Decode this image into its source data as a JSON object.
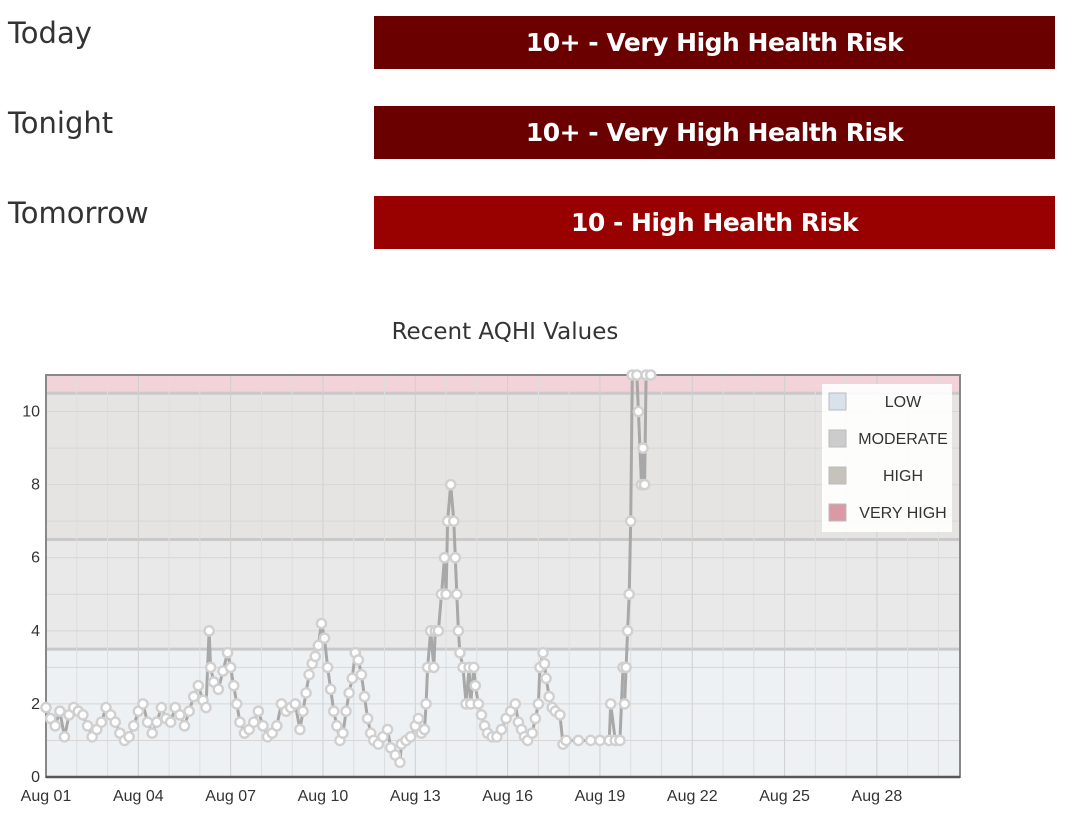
{
  "forecast": [
    {
      "label": "Today",
      "risk": "10+ - Very High Health Risk",
      "color": "#6b0000"
    },
    {
      "label": "Tonight",
      "risk": "10+ - Very High Health Risk",
      "color": "#6b0000"
    },
    {
      "label": "Tomorrow",
      "risk": "10 - High Health Risk",
      "color": "#990000"
    }
  ],
  "chart_data": {
    "type": "line",
    "title": "Recent AQHI Values",
    "xlabel": "",
    "ylabel": "",
    "x_range_days": [
      1,
      30.7
    ],
    "ylim": [
      0,
      11
    ],
    "y_ticks": [
      0,
      2,
      4,
      6,
      8,
      10
    ],
    "x_ticks": [
      {
        "day": 1,
        "label": "Aug 01"
      },
      {
        "day": 4,
        "label": "Aug 04"
      },
      {
        "day": 7,
        "label": "Aug 07"
      },
      {
        "day": 10,
        "label": "Aug 10"
      },
      {
        "day": 13,
        "label": "Aug 13"
      },
      {
        "day": 16,
        "label": "Aug 16"
      },
      {
        "day": 19,
        "label": "Aug 19"
      },
      {
        "day": 22,
        "label": "Aug 22"
      },
      {
        "day": 25,
        "label": "Aug 25"
      },
      {
        "day": 28,
        "label": "Aug 28"
      }
    ],
    "grid": true,
    "legend_position": "top-right",
    "bands": [
      {
        "name": "LOW",
        "from": 0,
        "to": 3.5,
        "color": "#edf1f4",
        "swatch": "#d8e2ea"
      },
      {
        "name": "MODERATE",
        "from": 3.5,
        "to": 6.5,
        "color": "#e9e9e9",
        "swatch": "#cccccc"
      },
      {
        "name": "HIGH",
        "from": 6.5,
        "to": 10.5,
        "color": "#e6e4e2",
        "swatch": "#c6c3bd"
      },
      {
        "name": "VERY HIGH",
        "from": 10.5,
        "to": 11,
        "color": "#f1d3d9",
        "swatch": "#d99aa6"
      }
    ],
    "series": [
      {
        "line_color": "#a8a8a8",
        "marker_color": "#d0d0d0",
        "points": [
          [
            1.0,
            1.9
          ],
          [
            1.15,
            1.6
          ],
          [
            1.3,
            1.4
          ],
          [
            1.45,
            1.8
          ],
          [
            1.6,
            1.1
          ],
          [
            1.75,
            1.7
          ],
          [
            1.9,
            1.9
          ],
          [
            2.05,
            1.8
          ],
          [
            2.2,
            1.7
          ],
          [
            2.35,
            1.4
          ],
          [
            2.5,
            1.1
          ],
          [
            2.65,
            1.3
          ],
          [
            2.8,
            1.5
          ],
          [
            2.95,
            1.9
          ],
          [
            3.1,
            1.7
          ],
          [
            3.25,
            1.5
          ],
          [
            3.4,
            1.2
          ],
          [
            3.55,
            1.0
          ],
          [
            3.7,
            1.1
          ],
          [
            3.85,
            1.4
          ],
          [
            4.0,
            1.8
          ],
          [
            4.15,
            2.0
          ],
          [
            4.3,
            1.5
          ],
          [
            4.45,
            1.2
          ],
          [
            4.6,
            1.5
          ],
          [
            4.75,
            1.9
          ],
          [
            4.9,
            1.6
          ],
          [
            5.05,
            1.5
          ],
          [
            5.2,
            1.9
          ],
          [
            5.35,
            1.7
          ],
          [
            5.5,
            1.4
          ],
          [
            5.65,
            1.8
          ],
          [
            5.8,
            2.2
          ],
          [
            5.95,
            2.5
          ],
          [
            6.1,
            2.1
          ],
          [
            6.2,
            1.9
          ],
          [
            6.3,
            4.0
          ],
          [
            6.35,
            3.0
          ],
          [
            6.45,
            2.6
          ],
          [
            6.6,
            2.4
          ],
          [
            6.75,
            2.9
          ],
          [
            6.9,
            3.4
          ],
          [
            7.0,
            3.0
          ],
          [
            7.1,
            2.5
          ],
          [
            7.2,
            2.0
          ],
          [
            7.3,
            1.5
          ],
          [
            7.45,
            1.2
          ],
          [
            7.6,
            1.3
          ],
          [
            7.75,
            1.5
          ],
          [
            7.9,
            1.8
          ],
          [
            8.05,
            1.4
          ],
          [
            8.2,
            1.1
          ],
          [
            8.35,
            1.2
          ],
          [
            8.5,
            1.4
          ],
          [
            8.65,
            2.0
          ],
          [
            8.8,
            1.8
          ],
          [
            8.95,
            1.9
          ],
          [
            9.1,
            2.0
          ],
          [
            9.25,
            1.3
          ],
          [
            9.35,
            1.8
          ],
          [
            9.45,
            2.3
          ],
          [
            9.55,
            2.8
          ],
          [
            9.65,
            3.1
          ],
          [
            9.75,
            3.3
          ],
          [
            9.85,
            3.6
          ],
          [
            9.95,
            4.2
          ],
          [
            10.05,
            3.8
          ],
          [
            10.15,
            3.0
          ],
          [
            10.25,
            2.4
          ],
          [
            10.35,
            1.8
          ],
          [
            10.45,
            1.4
          ],
          [
            10.55,
            1.0
          ],
          [
            10.65,
            1.2
          ],
          [
            10.75,
            1.8
          ],
          [
            10.85,
            2.3
          ],
          [
            10.95,
            2.7
          ],
          [
            11.05,
            3.4
          ],
          [
            11.15,
            3.2
          ],
          [
            11.25,
            2.8
          ],
          [
            11.35,
            2.2
          ],
          [
            11.45,
            1.6
          ],
          [
            11.55,
            1.2
          ],
          [
            11.65,
            1.0
          ],
          [
            11.8,
            0.9
          ],
          [
            11.95,
            1.1
          ],
          [
            12.1,
            1.3
          ],
          [
            12.2,
            0.8
          ],
          [
            12.35,
            0.6
          ],
          [
            12.5,
            0.4
          ],
          [
            12.55,
            0.9
          ],
          [
            12.7,
            1.0
          ],
          [
            12.85,
            1.1
          ],
          [
            13.0,
            1.4
          ],
          [
            13.1,
            1.6
          ],
          [
            13.2,
            1.2
          ],
          [
            13.3,
            1.3
          ],
          [
            13.35,
            2.0
          ],
          [
            13.4,
            3.0
          ],
          [
            13.5,
            4.0
          ],
          [
            13.6,
            3.0
          ],
          [
            13.65,
            4.0
          ],
          [
            13.75,
            4.0
          ],
          [
            13.85,
            5.0
          ],
          [
            13.95,
            6.0
          ],
          [
            14.0,
            5.0
          ],
          [
            14.05,
            7.0
          ],
          [
            14.15,
            8.0
          ],
          [
            14.25,
            7.0
          ],
          [
            14.3,
            6.0
          ],
          [
            14.35,
            5.0
          ],
          [
            14.4,
            4.0
          ],
          [
            14.45,
            3.4
          ],
          [
            14.55,
            3.0
          ],
          [
            14.65,
            2.0
          ],
          [
            14.75,
            3.0
          ],
          [
            14.8,
            2.0
          ],
          [
            14.9,
            3.0
          ],
          [
            14.95,
            2.5
          ],
          [
            15.05,
            2.0
          ],
          [
            15.15,
            1.7
          ],
          [
            15.25,
            1.4
          ],
          [
            15.35,
            1.2
          ],
          [
            15.5,
            1.1
          ],
          [
            15.65,
            1.1
          ],
          [
            15.8,
            1.3
          ],
          [
            15.95,
            1.6
          ],
          [
            16.1,
            1.8
          ],
          [
            16.25,
            2.0
          ],
          [
            16.35,
            1.5
          ],
          [
            16.45,
            1.3
          ],
          [
            16.55,
            1.1
          ],
          [
            16.65,
            1.0
          ],
          [
            16.8,
            1.2
          ],
          [
            16.9,
            1.6
          ],
          [
            17.0,
            2.0
          ],
          [
            17.05,
            3.0
          ],
          [
            17.15,
            3.4
          ],
          [
            17.2,
            3.1
          ],
          [
            17.25,
            2.7
          ],
          [
            17.35,
            2.2
          ],
          [
            17.45,
            1.9
          ],
          [
            17.55,
            1.8
          ],
          [
            17.7,
            1.7
          ],
          [
            17.8,
            0.9
          ],
          [
            17.9,
            1.0
          ],
          [
            18.3,
            1.0
          ],
          [
            18.7,
            1.0
          ],
          [
            19.0,
            1.0
          ],
          [
            19.3,
            1.0
          ],
          [
            19.35,
            2.0
          ],
          [
            19.5,
            1.0
          ],
          [
            19.65,
            1.0
          ],
          [
            19.75,
            3.0
          ],
          [
            19.85,
            3.0
          ],
          [
            19.8,
            2.0
          ],
          [
            19.9,
            4.0
          ],
          [
            19.95,
            5.0
          ],
          [
            20.0,
            7.0
          ],
          [
            20.05,
            11.0
          ],
          [
            20.2,
            11.0
          ],
          [
            20.25,
            10.0
          ],
          [
            20.35,
            8.0
          ],
          [
            20.4,
            9.0
          ],
          [
            20.45,
            8.0
          ],
          [
            20.5,
            11.0
          ],
          [
            20.65,
            11.0
          ]
        ]
      }
    ]
  }
}
